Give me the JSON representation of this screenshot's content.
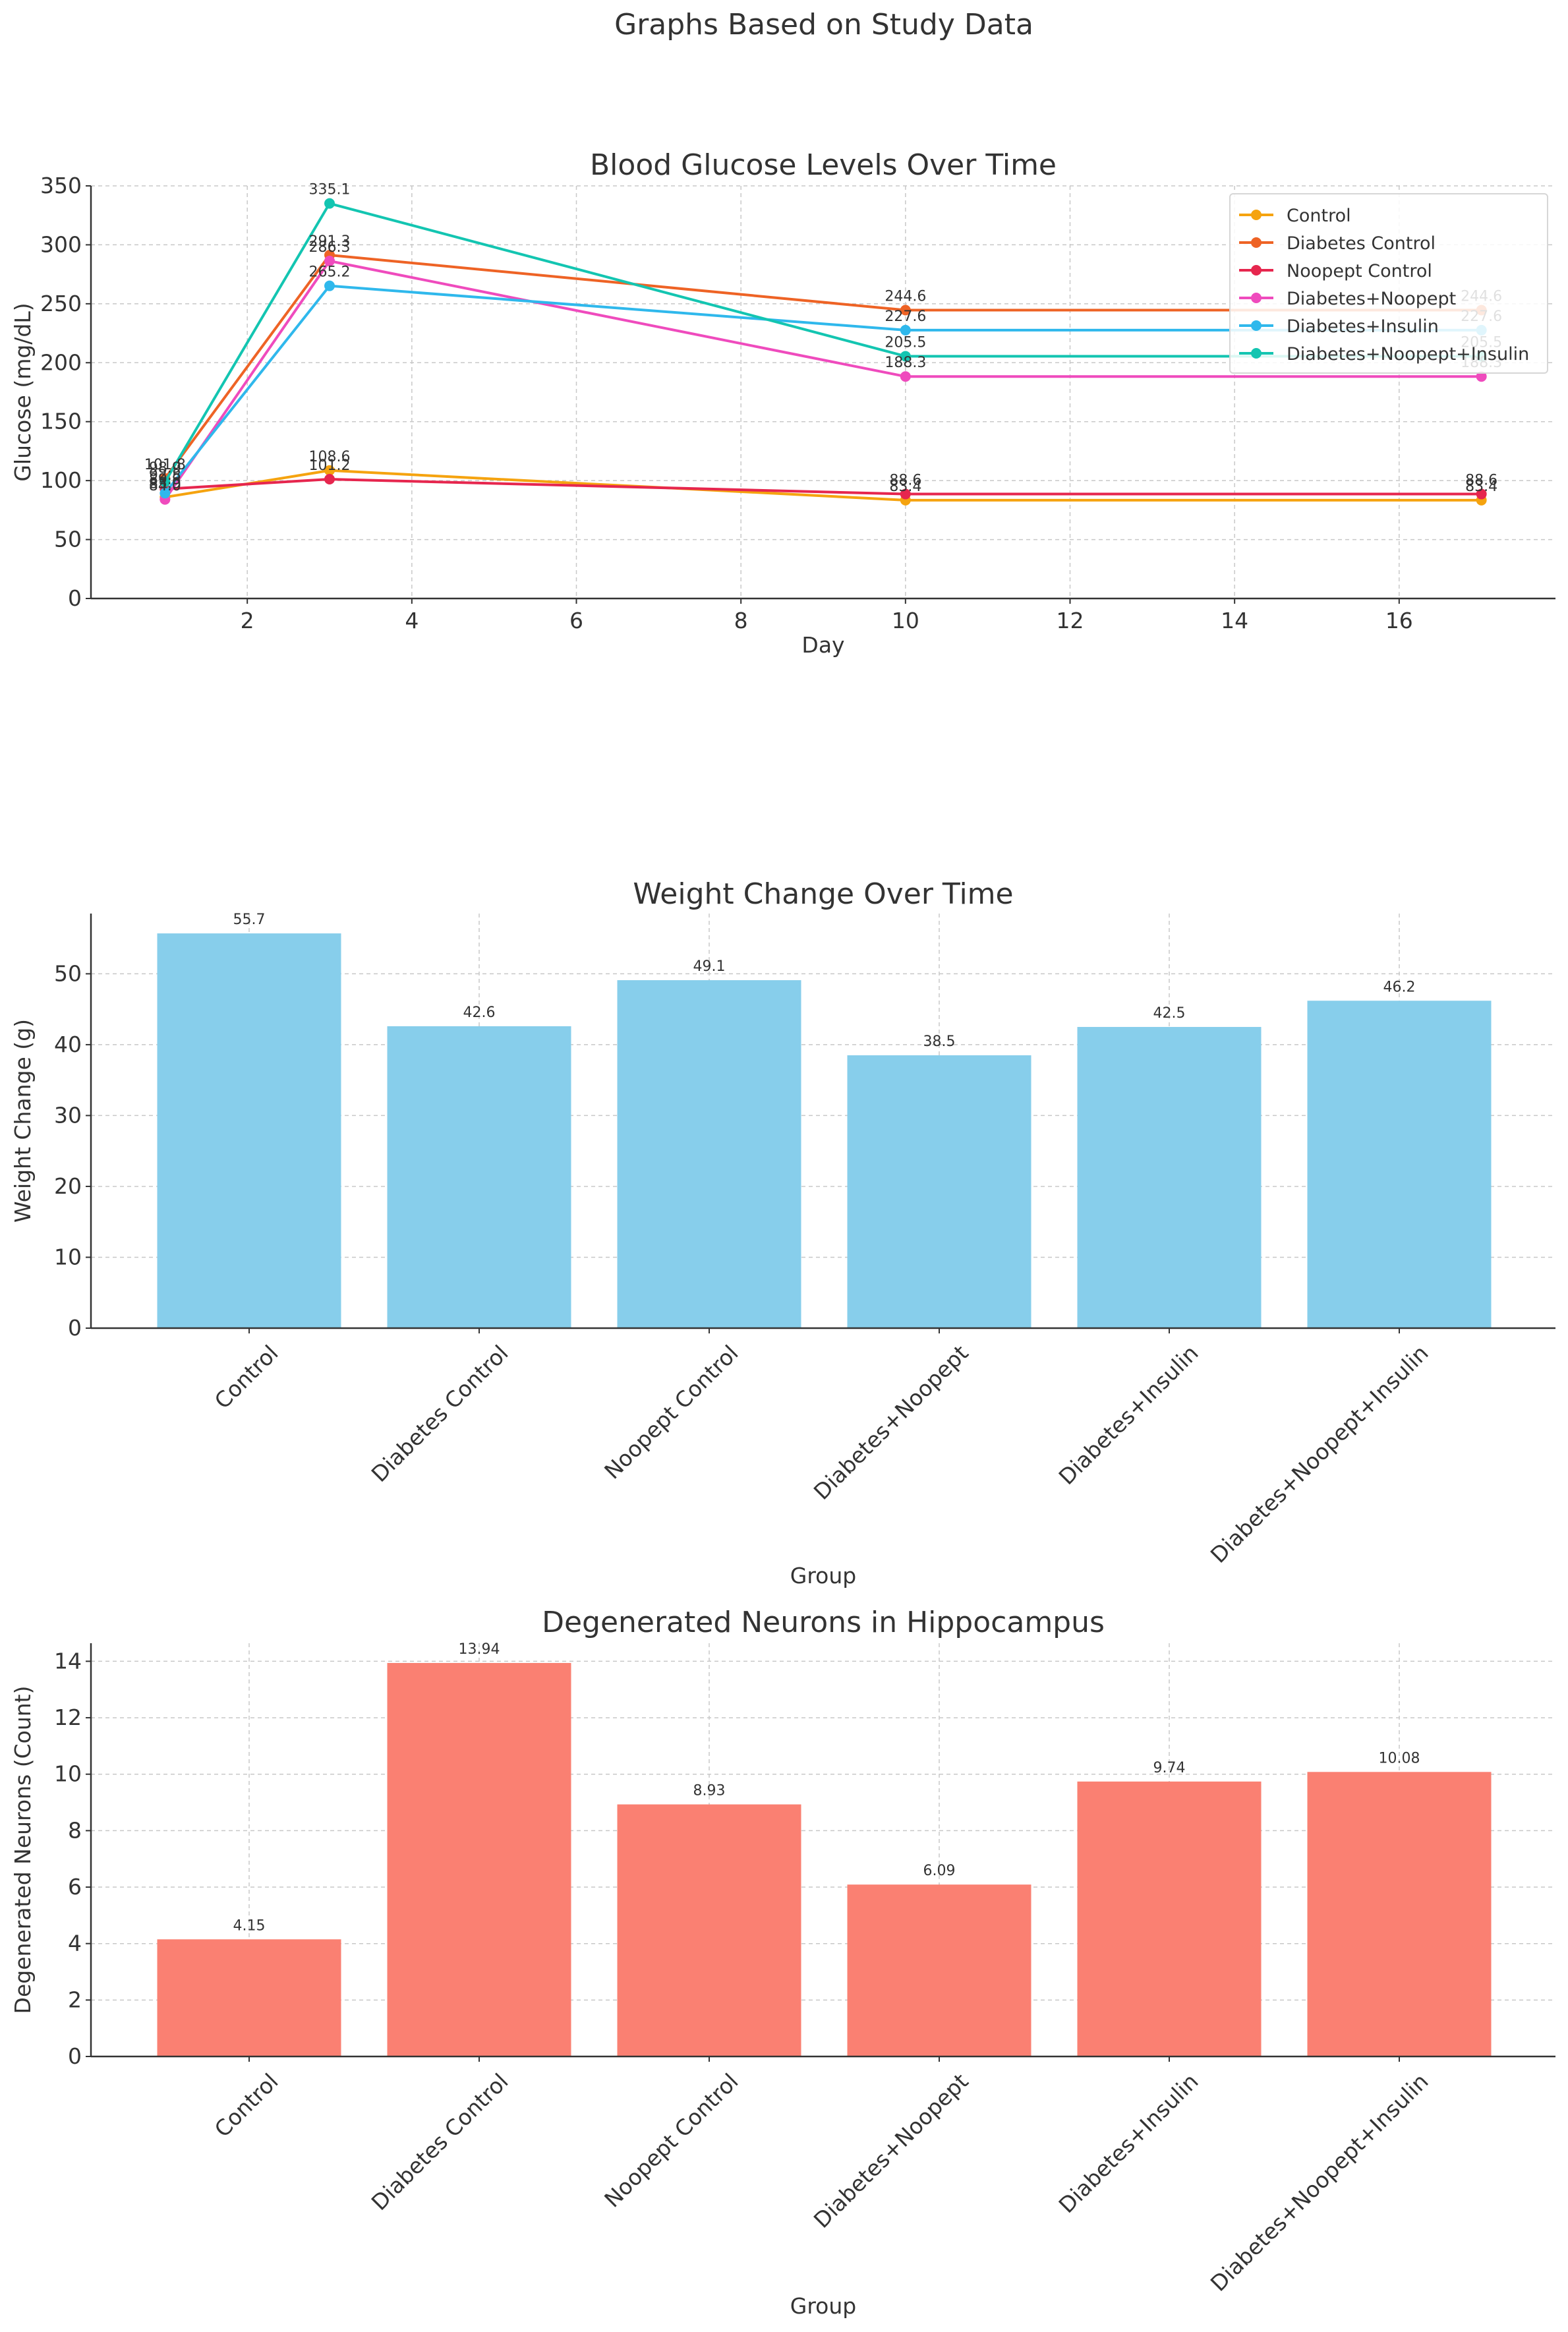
{
  "suptitle": "Graphs Based on Study Data",
  "chart_data": [
    {
      "type": "line",
      "title": "Blood Glucose Levels Over Time",
      "xlabel": "Day",
      "ylabel": "Glucose (mg/dL)",
      "x": [
        1,
        3,
        10,
        17
      ],
      "xticks": [
        2,
        4,
        6,
        8,
        10,
        12,
        14,
        16
      ],
      "xlim": [
        0.1,
        17.9
      ],
      "ylim": [
        0,
        350
      ],
      "yticks": [
        0,
        50,
        100,
        150,
        200,
        250,
        300,
        350
      ],
      "grid": true,
      "legend": "top-right",
      "series": [
        {
          "name": "Control",
          "color": "#f5a30f",
          "values": [
            85.9,
            108.6,
            83.4,
            83.4
          ]
        },
        {
          "name": "Diabetes Control",
          "color": "#ee6325",
          "values": [
            101.8,
            291.3,
            244.6,
            244.6
          ]
        },
        {
          "name": "Noopept Control",
          "color": "#e6264e",
          "values": [
            92.8,
            101.2,
            88.6,
            88.6
          ]
        },
        {
          "name": "Diabetes+Noopept",
          "color": "#ef4bbd",
          "values": [
            84.0,
            286.3,
            188.3,
            188.3
          ]
        },
        {
          "name": "Diabetes+Insulin",
          "color": "#2fb8ec",
          "values": [
            89.3,
            265.2,
            227.6,
            227.6
          ]
        },
        {
          "name": "Diabetes+Noopept+Insulin",
          "color": "#13c5b1",
          "values": [
            98.9,
            335.1,
            205.5,
            205.5
          ]
        }
      ],
      "point_labels": [
        "85.9",
        "108.6",
        "83.4",
        "83.4",
        "101.8",
        "291.3",
        "244.6",
        "244.6",
        "92.8",
        "101.2",
        "88.6",
        "88.6",
        "84.0",
        "286.3",
        "188.3",
        "188.3",
        "89.3",
        "265.2",
        "227.6",
        "227.6",
        "98.9",
        "335.1",
        "205.5",
        "205.5"
      ]
    },
    {
      "type": "bar",
      "title": "Weight Change Over Time",
      "xlabel": "Group",
      "ylabel": "Weight Change (g)",
      "categories": [
        "Control",
        "Diabetes Control",
        "Noopept Control",
        "Diabetes+Noopept",
        "Diabetes+Insulin",
        "Diabetes+Noopept+Insulin"
      ],
      "values": [
        55.7,
        42.6,
        49.1,
        38.5,
        42.5,
        46.2
      ],
      "value_labels": [
        "55.7",
        "42.6",
        "49.1",
        "38.5",
        "42.5",
        "46.2"
      ],
      "ylim": [
        0,
        58.5
      ],
      "yticks": [
        0,
        10,
        20,
        30,
        40,
        50
      ],
      "color": "#87ceeb",
      "grid": true
    },
    {
      "type": "bar",
      "title": "Degenerated Neurons in Hippocampus",
      "xlabel": "Group",
      "ylabel": "Degenerated Neurons (Count)",
      "categories": [
        "Control",
        "Diabetes Control",
        "Noopept Control",
        "Diabetes+Noopept",
        "Diabetes+Insulin",
        "Diabetes+Noopept+Insulin"
      ],
      "values": [
        4.15,
        13.94,
        8.93,
        6.09,
        9.74,
        10.08
      ],
      "value_labels": [
        "4.15",
        "13.94",
        "8.93",
        "6.09",
        "9.74",
        "10.08"
      ],
      "ylim": [
        0,
        14.64
      ],
      "yticks": [
        0,
        2,
        4,
        6,
        8,
        10,
        12,
        14
      ],
      "color": "#fa8072",
      "grid": true
    }
  ]
}
